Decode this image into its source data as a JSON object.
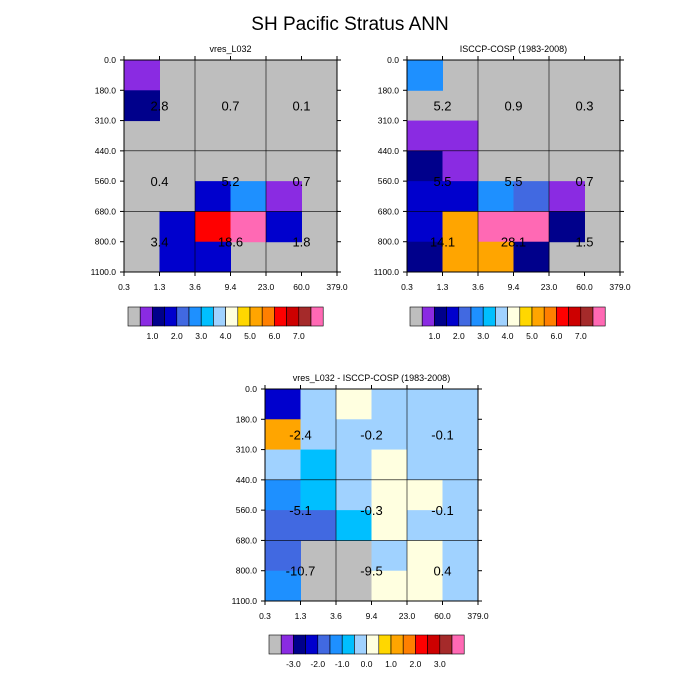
{
  "figure_title": "SH Pacific Stratus ANN",
  "colors": {
    "background": "#ffffff",
    "missing": "#bebebe",
    "outline": "#000000",
    "palette": [
      "#bebebe",
      "#8a2be2",
      "#00008b",
      "#0000cd",
      "#4169e1",
      "#1e90ff",
      "#00bfff",
      "#a0d2ff",
      "#ffffe0",
      "#ffd700",
      "#ffa500",
      "#ff7f00",
      "#ff0000",
      "#cd0000",
      "#a52a2a",
      "#ff69b4"
    ]
  },
  "chart_data": [
    {
      "type": "heatmap",
      "title": "vres_L032",
      "x_edges": [
        "0.3",
        "1.3",
        "3.6",
        "9.4",
        "23.0",
        "60.0",
        "379.0"
      ],
      "y_edges": [
        "0.0",
        "180.0",
        "310.0",
        "440.0",
        "560.0",
        "680.0",
        "800.0",
        "1100.0"
      ],
      "colorbar_labels": [
        "1.0",
        "2.0",
        "3.0",
        "4.0",
        "5.0",
        "6.0",
        "7.0"
      ],
      "cell_colors": [
        [
          1,
          0,
          0,
          0,
          0,
          0
        ],
        [
          2,
          0,
          0,
          0,
          0,
          0
        ],
        [
          0,
          0,
          0,
          0,
          0,
          0
        ],
        [
          0,
          0,
          0,
          0,
          0,
          0
        ],
        [
          0,
          0,
          3,
          5,
          1,
          0
        ],
        [
          0,
          3,
          12,
          15,
          3,
          0
        ],
        [
          0,
          3,
          3,
          0,
          0,
          0
        ]
      ],
      "annotations": [
        {
          "value": "2.8",
          "x_bin": 0,
          "y_bin": 1
        },
        {
          "value": "0.7",
          "x_bin": 1,
          "y_bin": 1
        },
        {
          "value": "0.1",
          "x_bin": 2,
          "y_bin": 1
        },
        {
          "value": "0.4",
          "x_bin": 0,
          "y_bin": 2
        },
        {
          "value": "5.2",
          "x_bin": 1,
          "y_bin": 2
        },
        {
          "value": "0.7",
          "x_bin": 2,
          "y_bin": 2
        },
        {
          "value": "3.4",
          "x_bin": 0,
          "y_bin": 3
        },
        {
          "value": "18.6",
          "x_bin": 1,
          "y_bin": 3
        },
        {
          "value": "1.8",
          "x_bin": 2,
          "y_bin": 3
        }
      ]
    },
    {
      "type": "heatmap",
      "title": "ISCCP-COSP (1983-2008)",
      "x_edges": [
        "0.3",
        "1.3",
        "3.6",
        "9.4",
        "23.0",
        "60.0",
        "379.0"
      ],
      "y_edges": [
        "0.0",
        "180.0",
        "310.0",
        "440.0",
        "560.0",
        "680.0",
        "800.0",
        "1100.0"
      ],
      "colorbar_labels": [
        "1.0",
        "2.0",
        "3.0",
        "4.0",
        "5.0",
        "6.0",
        "7.0"
      ],
      "cell_colors": [
        [
          5,
          0,
          0,
          0,
          0,
          0
        ],
        [
          0,
          0,
          0,
          0,
          0,
          0
        ],
        [
          1,
          1,
          0,
          0,
          0,
          0
        ],
        [
          2,
          1,
          0,
          0,
          0,
          0
        ],
        [
          3,
          3,
          5,
          4,
          1,
          0
        ],
        [
          3,
          10,
          15,
          15,
          2,
          0
        ],
        [
          2,
          10,
          10,
          2,
          0,
          0
        ]
      ],
      "annotations": [
        {
          "value": "5.2",
          "x_bin": 0,
          "y_bin": 1
        },
        {
          "value": "0.9",
          "x_bin": 1,
          "y_bin": 1
        },
        {
          "value": "0.3",
          "x_bin": 2,
          "y_bin": 1
        },
        {
          "value": "5.5",
          "x_bin": 0,
          "y_bin": 2
        },
        {
          "value": "5.5",
          "x_bin": 1,
          "y_bin": 2
        },
        {
          "value": "0.7",
          "x_bin": 2,
          "y_bin": 2
        },
        {
          "value": "14.1",
          "x_bin": 0,
          "y_bin": 3
        },
        {
          "value": "28.1",
          "x_bin": 1,
          "y_bin": 3
        },
        {
          "value": "1.5",
          "x_bin": 2,
          "y_bin": 3
        }
      ]
    },
    {
      "type": "heatmap",
      "title": "vres_L032 - ISCCP-COSP (1983-2008)",
      "x_edges": [
        "0.3",
        "1.3",
        "3.6",
        "9.4",
        "23.0",
        "60.0",
        "379.0"
      ],
      "y_edges": [
        "0.0",
        "180.0",
        "310.0",
        "440.0",
        "560.0",
        "680.0",
        "800.0",
        "1100.0"
      ],
      "colorbar_labels": [
        "-3.0",
        "-2.0",
        "-1.0",
        "0.0",
        "1.0",
        "2.0",
        "3.0"
      ],
      "cell_colors": [
        [
          3,
          7,
          8,
          7,
          7,
          7
        ],
        [
          10,
          7,
          7,
          7,
          7,
          7
        ],
        [
          7,
          6,
          7,
          8,
          7,
          7
        ],
        [
          5,
          6,
          7,
          8,
          8,
          7
        ],
        [
          4,
          4,
          6,
          8,
          7,
          7
        ],
        [
          4,
          0,
          0,
          7,
          8,
          7
        ],
        [
          5,
          0,
          0,
          8,
          8,
          7
        ]
      ],
      "annotations": [
        {
          "value": "-2.4",
          "x_bin": 0,
          "y_bin": 1
        },
        {
          "value": "-0.2",
          "x_bin": 1,
          "y_bin": 1
        },
        {
          "value": "-0.1",
          "x_bin": 2,
          "y_bin": 1
        },
        {
          "value": "-5.1",
          "x_bin": 0,
          "y_bin": 2
        },
        {
          "value": "-0.3",
          "x_bin": 1,
          "y_bin": 2
        },
        {
          "value": "-0.1",
          "x_bin": 2,
          "y_bin": 2
        },
        {
          "value": "-10.7",
          "x_bin": 0,
          "y_bin": 3
        },
        {
          "value": "-9.5",
          "x_bin": 1,
          "y_bin": 3
        },
        {
          "value": "0.4",
          "x_bin": 2,
          "y_bin": 3
        }
      ]
    }
  ]
}
